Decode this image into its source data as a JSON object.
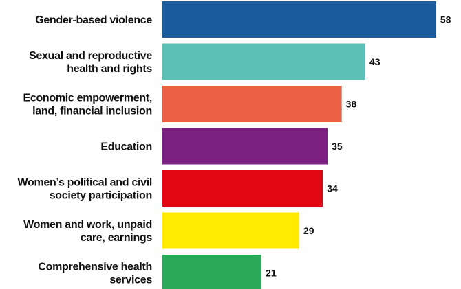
{
  "chart_data": {
    "type": "bar",
    "orientation": "horizontal",
    "title": "",
    "xlabel": "",
    "ylabel": "",
    "categories": [
      [
        "Gender-based violence"
      ],
      [
        "Sexual and reproductive",
        "health and rights"
      ],
      [
        "Economic empowerment,",
        "land, financial inclusion"
      ],
      [
        "Education"
      ],
      [
        "Women’s political and civil",
        "society participation"
      ],
      [
        "Women and work, unpaid",
        "care, earnings"
      ],
      [
        "Comprehensive health",
        "services"
      ]
    ],
    "values": [
      58,
      43,
      38,
      35,
      34,
      29,
      21
    ],
    "colors": [
      "#1a5c9e",
      "#5bbfb5",
      "#ec6146",
      "#7b2182",
      "#e30613",
      "#ffec00",
      "#2aa857"
    ],
    "xlim": [
      0,
      60
    ],
    "grid": false,
    "legend": "none"
  }
}
